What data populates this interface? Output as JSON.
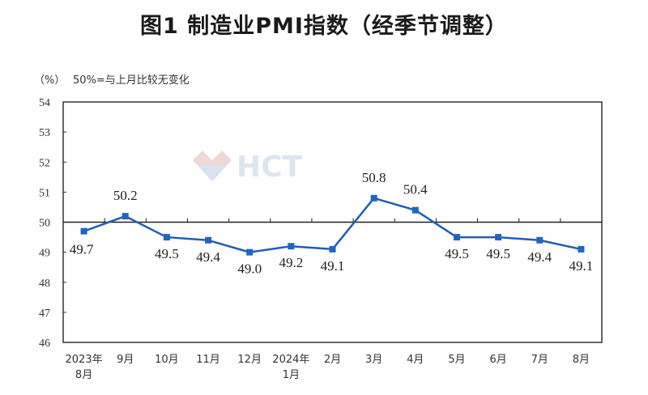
{
  "title": "图1  制造业PMI指数（经季节调整）",
  "unit_label": "（%）",
  "note": "50%=与上月比较无变化",
  "watermark": {
    "text": "HCT",
    "icon": "diamond-logo-icon"
  },
  "colors": {
    "line": "#1f5fb0",
    "marker": "#1f66c2",
    "axis": "#333333",
    "reference": "#222222"
  },
  "chart_data": {
    "type": "line",
    "title": "图1  制造业PMI指数（经季节调整）",
    "xlabel": "",
    "ylabel": "(%)",
    "annotation": "50%=与上月比较无变化",
    "ylim": [
      46,
      54
    ],
    "yticks": [
      46,
      47,
      48,
      49,
      50,
      51,
      52,
      53,
      54
    ],
    "reference_line": 50,
    "grid": false,
    "legend": null,
    "categories": [
      "2023年\n8月",
      "9月",
      "10月",
      "11月",
      "12月",
      "2024年\n1月",
      "2月",
      "3月",
      "4月",
      "5月",
      "6月",
      "7月",
      "8月"
    ],
    "series": [
      {
        "name": "制造业PMI",
        "values": [
          49.7,
          50.2,
          49.5,
          49.4,
          49.0,
          49.2,
          49.1,
          50.8,
          50.4,
          49.5,
          49.5,
          49.4,
          49.1
        ]
      }
    ],
    "data_labels": [
      "49.7",
      "50.2",
      "49.5",
      "49.4",
      "49.0",
      "49.2",
      "49.1",
      "50.8",
      "50.4",
      "49.5",
      "49.5",
      "49.4",
      "49.1"
    ]
  }
}
